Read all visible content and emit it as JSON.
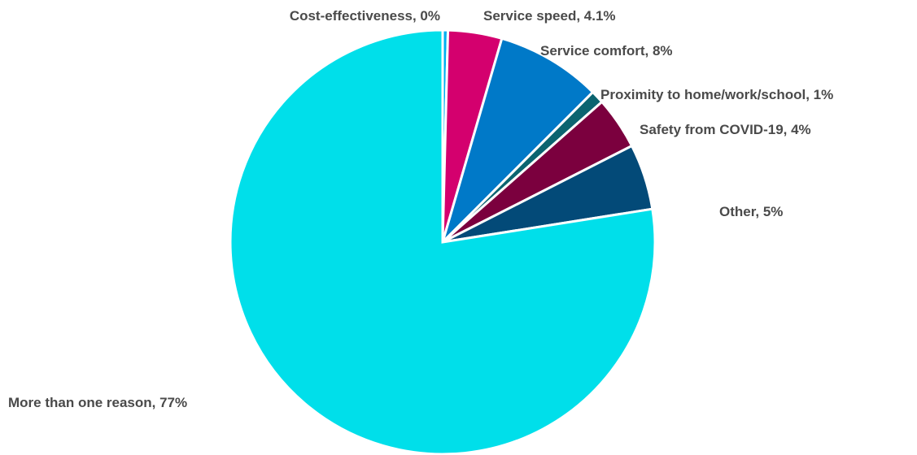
{
  "chart_data": {
    "type": "pie",
    "start_angle_deg": 0,
    "direction": "clockwise",
    "legend": "none",
    "slices": [
      {
        "label": "Cost-effectiveness, 0%",
        "value": 0.4,
        "color": "#00b0f0"
      },
      {
        "label": "Service speed, 4.1%",
        "value": 4.1,
        "color": "#d4006e"
      },
      {
        "label": "Service comfort, 8%",
        "value": 8,
        "color": "#0079c8"
      },
      {
        "label": "Proximity to home/work/school, 1%",
        "value": 1,
        "color": "#0b6470"
      },
      {
        "label": "Safety from COVID-19, 4%",
        "value": 4,
        "color": "#7b003e"
      },
      {
        "label": "Other, 5%",
        "value": 5,
        "color": "#034a78"
      },
      {
        "label": "More than one reason, 77%",
        "value": 77.5,
        "color": "#00dfea"
      }
    ]
  }
}
